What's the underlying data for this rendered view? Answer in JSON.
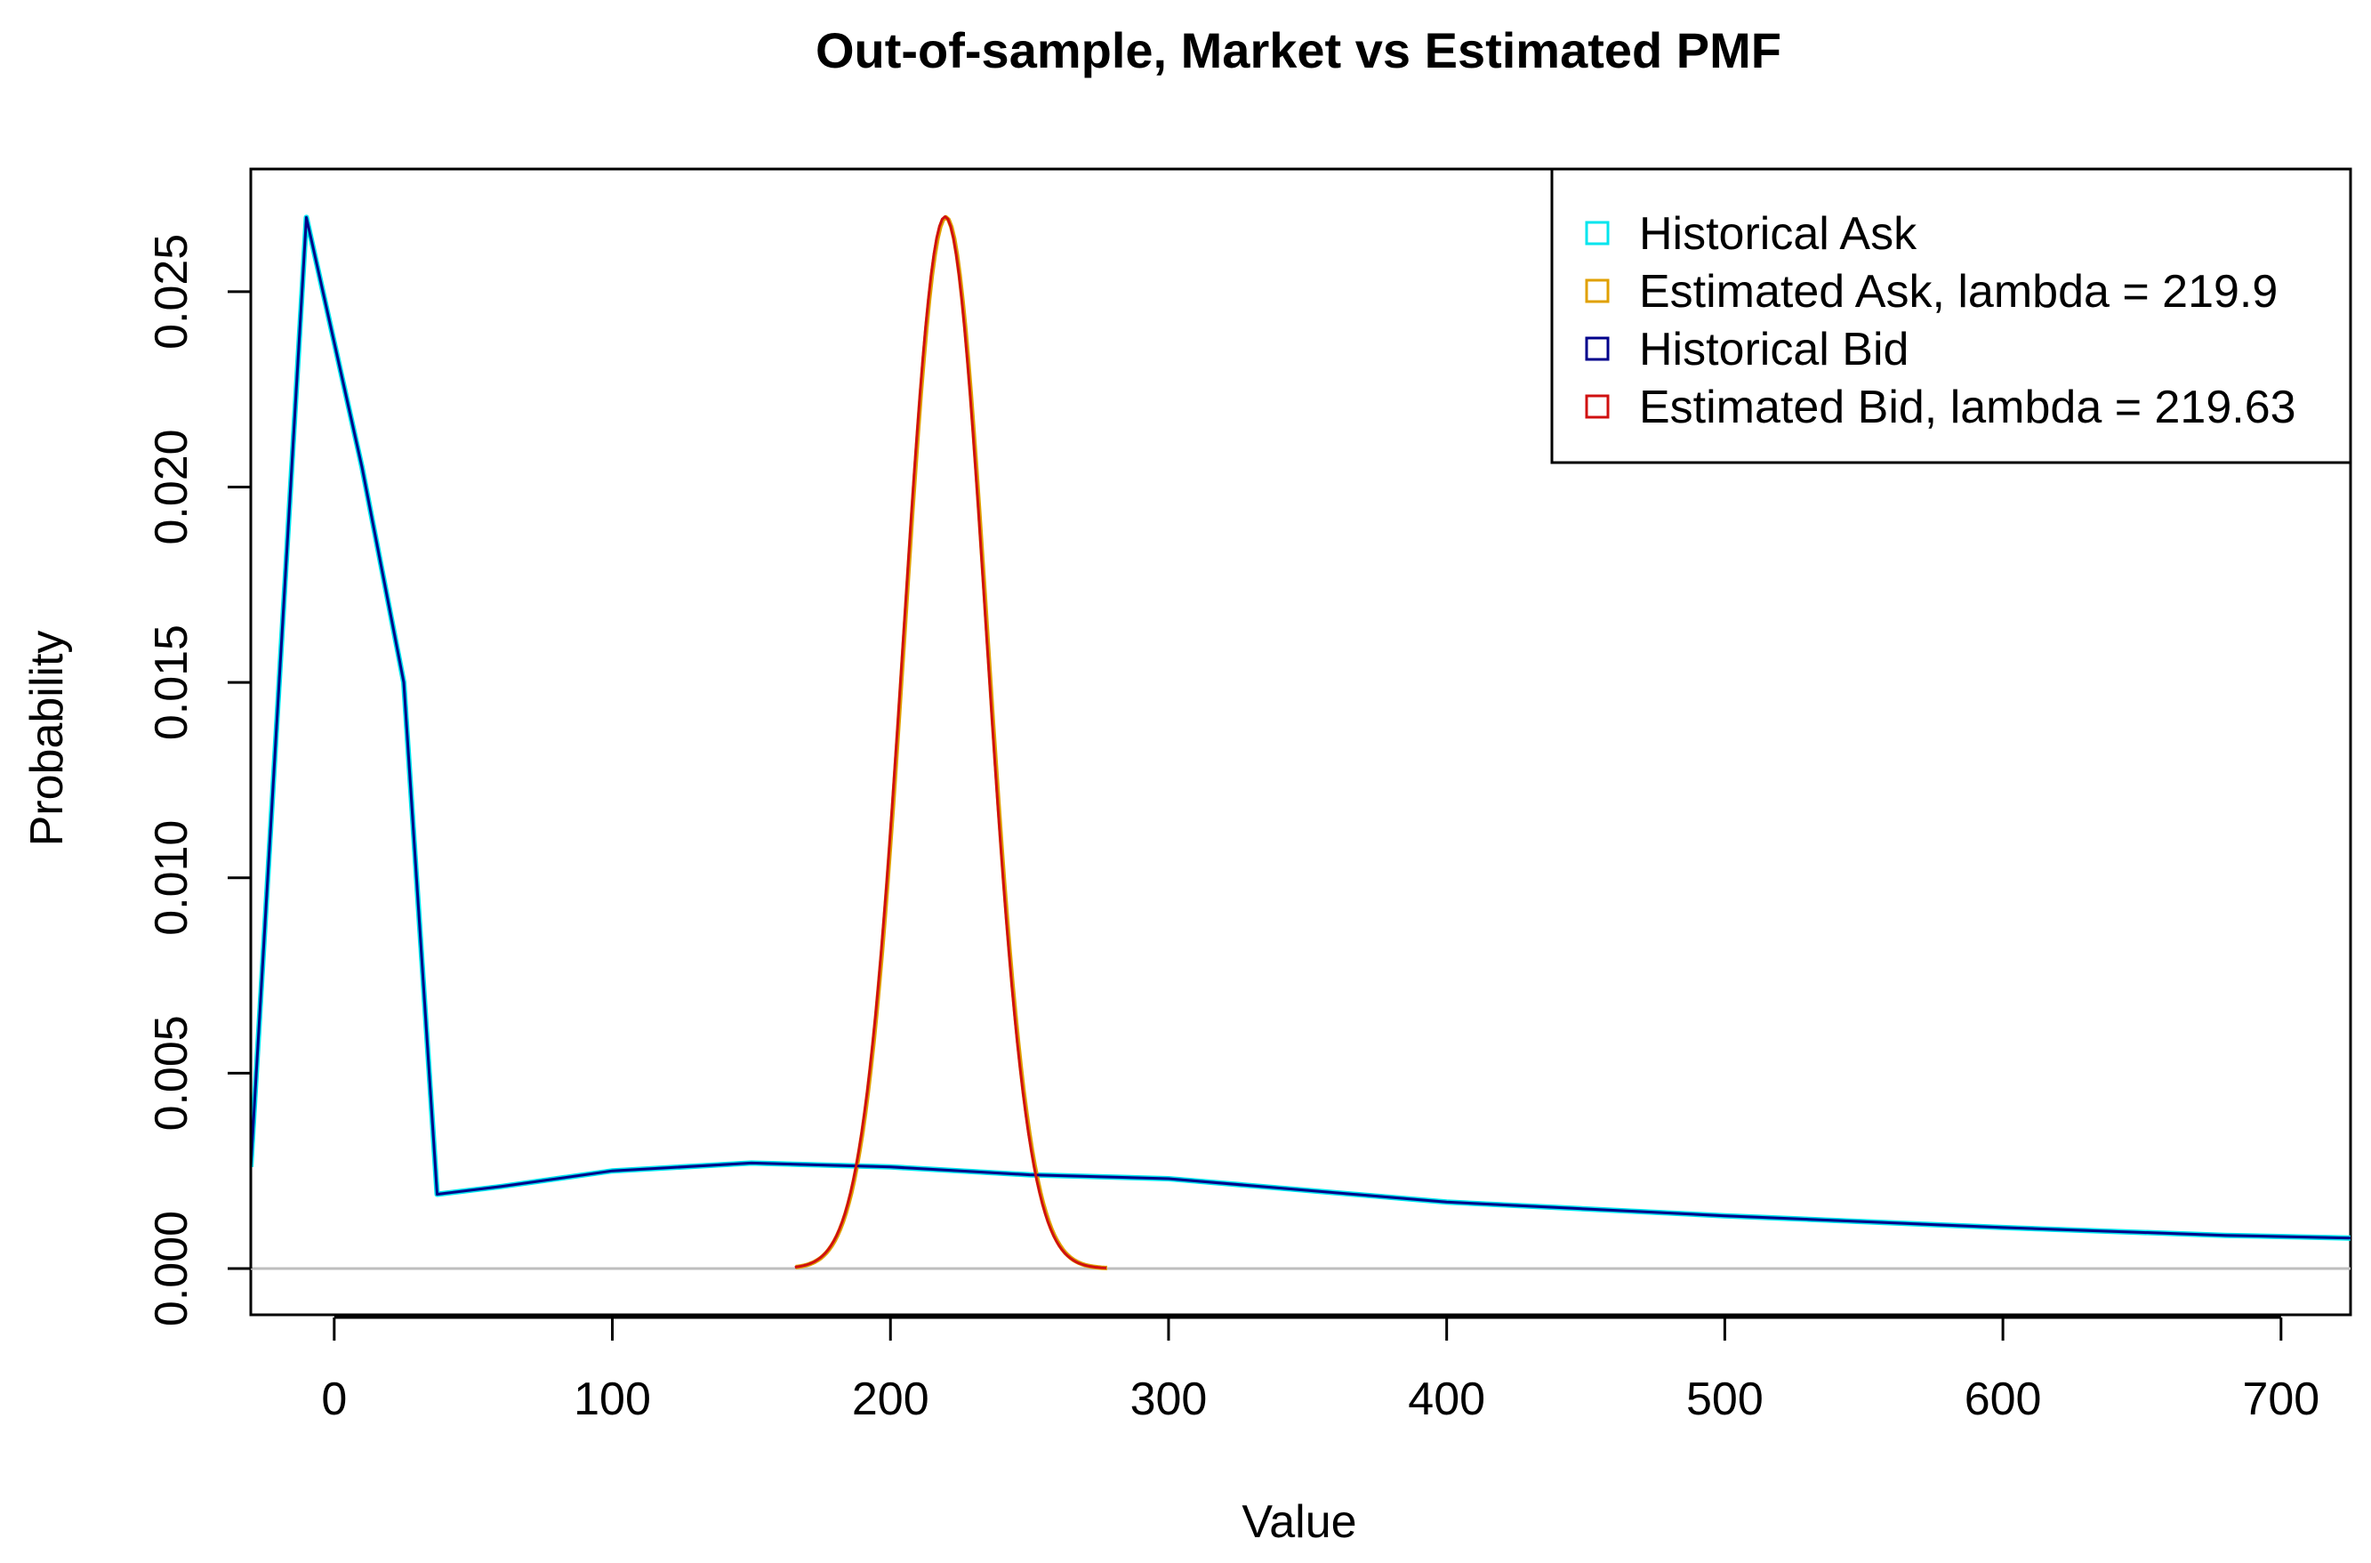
{
  "chart_data": {
    "type": "line",
    "title": "Out-of-sample, Market vs Estimated PMF",
    "xlabel": "Value",
    "ylabel": "Probability",
    "xlim": [
      -30,
      725
    ],
    "ylim": [
      0,
      0.027
    ],
    "x_ticks": [
      0,
      100,
      200,
      300,
      400,
      500,
      600,
      700
    ],
    "y_ticks": [
      0.0,
      0.005,
      0.01,
      0.015,
      0.02,
      0.025
    ],
    "y_tick_labels": [
      "0.000",
      "0.005",
      "0.010",
      "0.015",
      "0.020",
      "0.025"
    ],
    "grid": false,
    "reference_line": {
      "y": 0,
      "color": "#bebebe"
    },
    "legend_position": "top-right",
    "series": [
      {
        "name": "Historical Ask",
        "color": "#00e5ee",
        "x": [
          -30,
          -10,
          10,
          25,
          37,
          60,
          100,
          150,
          200,
          250,
          300,
          400,
          500,
          600,
          680,
          725
        ],
        "y": [
          0.0026,
          0.0269,
          0.0205,
          0.015,
          0.0019,
          0.0021,
          0.0025,
          0.0027,
          0.0026,
          0.0024,
          0.0023,
          0.0017,
          0.00135,
          0.00105,
          0.00085,
          0.00078
        ]
      },
      {
        "name": "Estimated Ask, lambda = 219.9",
        "color": "#e0a000",
        "lambda": 219.9
      },
      {
        "name": "Historical Bid",
        "color": "#00008b",
        "x": [
          -30,
          -10,
          10,
          25,
          37,
          60,
          100,
          150,
          200,
          250,
          300,
          400,
          500,
          600,
          680,
          725
        ],
        "y": [
          0.0026,
          0.0269,
          0.0205,
          0.015,
          0.0019,
          0.0021,
          0.0025,
          0.0027,
          0.0026,
          0.0024,
          0.0023,
          0.0017,
          0.00135,
          0.00105,
          0.00085,
          0.00078
        ]
      },
      {
        "name": "Estimated Bid, lambda = 219.63",
        "color": "#d01010",
        "lambda": 219.63
      }
    ]
  }
}
